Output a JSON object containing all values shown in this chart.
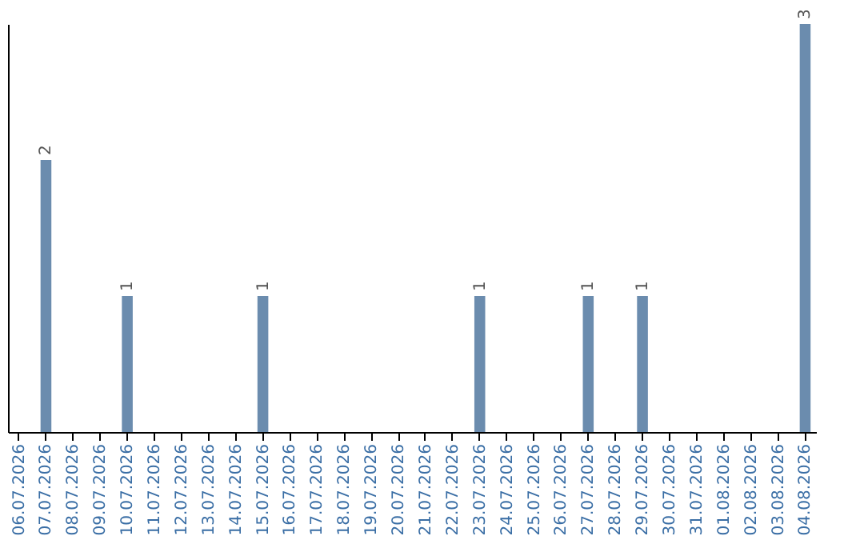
{
  "chart_data": {
    "type": "bar",
    "categories": [
      "06.07.2026",
      "07.07.2026",
      "08.07.2026",
      "09.07.2026",
      "10.07.2026",
      "11.07.2026",
      "12.07.2026",
      "13.07.2026",
      "14.07.2026",
      "15.07.2026",
      "16.07.2026",
      "17.07.2026",
      "18.07.2026",
      "19.07.2026",
      "20.07.2026",
      "21.07.2026",
      "22.07.2026",
      "23.07.2026",
      "24.07.2026",
      "25.07.2026",
      "26.07.2026",
      "27.07.2026",
      "28.07.2026",
      "29.07.2026",
      "30.07.2026",
      "31.07.2026",
      "01.08.2026",
      "02.08.2026",
      "03.08.2026",
      "04.08.2026"
    ],
    "values": [
      0,
      2,
      0,
      0,
      1,
      0,
      0,
      0,
      0,
      1,
      0,
      0,
      0,
      0,
      0,
      0,
      0,
      1,
      0,
      0,
      0,
      1,
      0,
      1,
      0,
      0,
      0,
      0,
      0,
      3
    ],
    "value_labels": [
      null,
      "2",
      null,
      null,
      "1",
      null,
      null,
      null,
      null,
      "1",
      null,
      null,
      null,
      null,
      null,
      null,
      null,
      "1",
      null,
      null,
      null,
      "1",
      null,
      "1",
      null,
      null,
      null,
      null,
      null,
      "3"
    ],
    "color": "#6b8cae",
    "grid": false
  }
}
